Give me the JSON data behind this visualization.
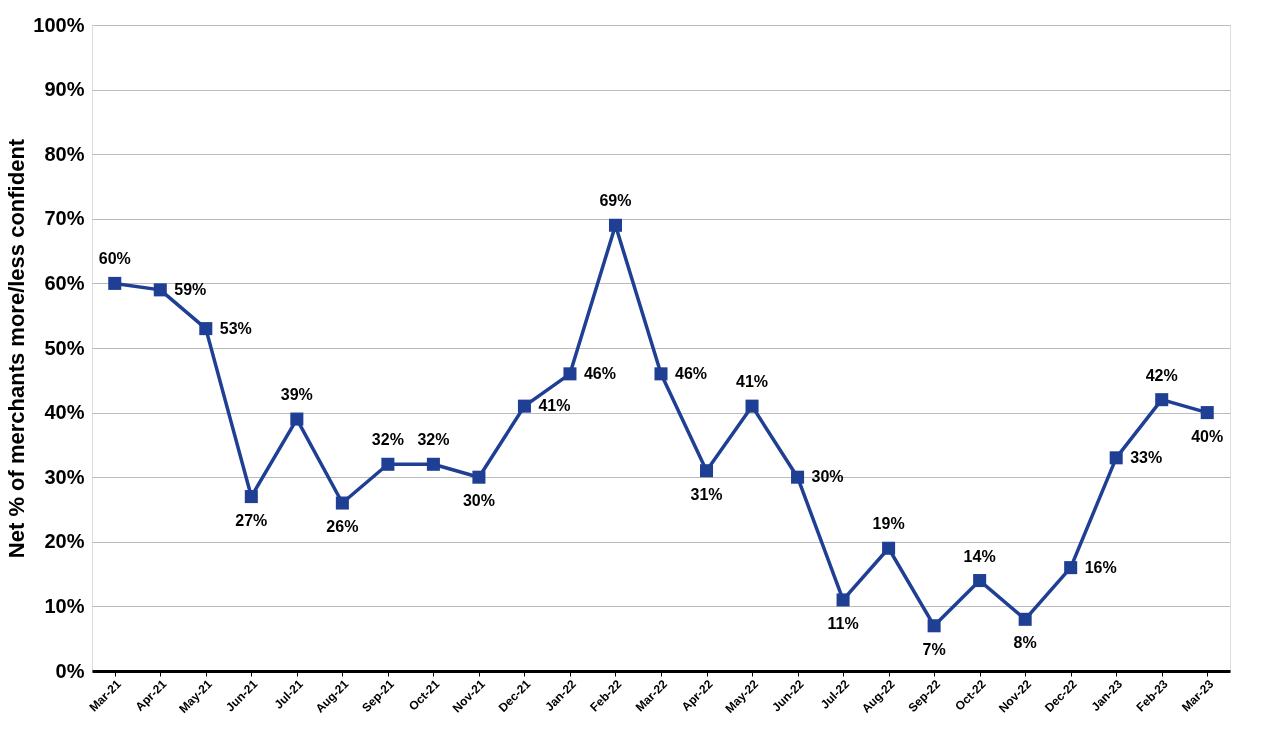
{
  "chart_data": {
    "type": "line",
    "ylabel": "Net % of merchants more/less confident",
    "categories": [
      "Mar-21",
      "Apr-21",
      "May-21",
      "Jun-21",
      "Jul-21",
      "Aug-21",
      "Sep-21",
      "Oct-21",
      "Nov-21",
      "Dec-21",
      "Jan-22",
      "Feb-22",
      "Mar-22",
      "Apr-22",
      "May-22",
      "Jun-22",
      "Jul-22",
      "Aug-22",
      "Sep-22",
      "Oct-22",
      "Nov-22",
      "Dec-22",
      "Jan-23",
      "Feb-23",
      "Mar-23"
    ],
    "series": [
      {
        "color": "#1f3f94",
        "values": [
          60,
          59,
          53,
          27,
          39,
          26,
          32,
          32,
          30,
          41,
          46,
          69,
          46,
          31,
          41,
          30,
          11,
          19,
          7,
          14,
          8,
          16,
          33,
          42,
          40
        ],
        "value_labels": [
          "60%",
          "59%",
          "53%",
          "27%",
          "39%",
          "26%",
          "32%",
          "32%",
          "30%",
          "41%",
          "46%",
          "69%",
          "46%",
          "31%",
          "41%",
          "30%",
          "11%",
          "19%",
          "7%",
          "14%",
          "8%",
          "16%",
          "33%",
          "42%",
          "40%"
        ]
      }
    ],
    "ylim": [
      0,
      100
    ],
    "yticks": [
      {
        "value": 0,
        "label": "0%"
      },
      {
        "value": 10,
        "label": "10%"
      },
      {
        "value": 20,
        "label": "20%"
      },
      {
        "value": 30,
        "label": "30%"
      },
      {
        "value": 40,
        "label": "40%"
      },
      {
        "value": 50,
        "label": "50%"
      },
      {
        "value": 60,
        "label": "60%"
      },
      {
        "value": 70,
        "label": "70%"
      },
      {
        "value": 80,
        "label": "80%"
      },
      {
        "value": 90,
        "label": "90%"
      },
      {
        "value": 100,
        "label": "100%"
      }
    ],
    "grid": "y",
    "marker": "square",
    "line_style": "solid"
  }
}
